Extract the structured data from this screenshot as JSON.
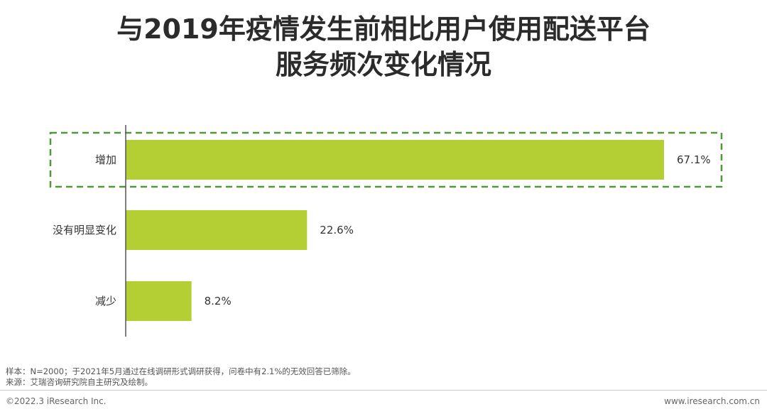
{
  "title_lines": [
    "与2019年疫情发生前相比用户使用配送平台",
    "服务频次变化情况"
  ],
  "chart_data": {
    "type": "bar",
    "orientation": "horizontal",
    "categories": [
      "增加",
      "没有明显变化",
      "减少"
    ],
    "values": [
      67.1,
      22.6,
      8.2
    ],
    "value_labels": [
      "67.1%",
      "22.6%",
      "8.2%"
    ],
    "highlighted_category": "增加",
    "xlim": [
      0,
      70
    ],
    "grid": false,
    "legend": "none"
  },
  "colors": {
    "bar": "#b3cf34",
    "highlight_border": "#4e9a3a",
    "axis": "#555555"
  },
  "footer": {
    "note": "样本：N=2000；于2021年5月通过在线调研形式调研获得，问卷中有2.1%的无效回答已筛除。",
    "source": "来源：艾瑞咨询研究院自主研究及绘制。",
    "copyright": "©2022.3 iResearch Inc.",
    "website": "www.iresearch.com.cn"
  }
}
